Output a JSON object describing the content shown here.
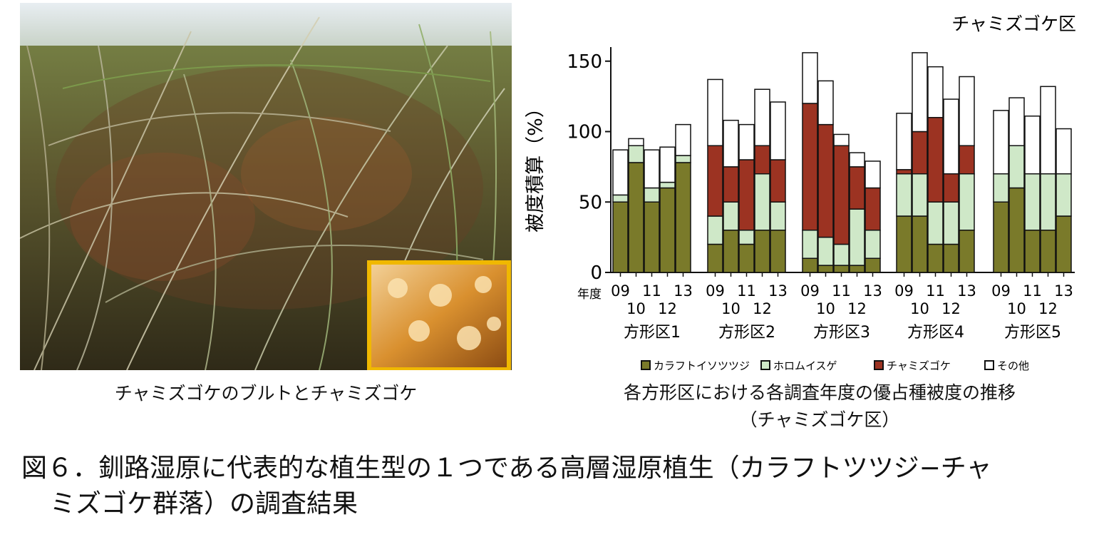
{
  "photo": {
    "caption": "チャミズゴケのブルトとチャミズゴケ"
  },
  "chart_data": {
    "type": "bar",
    "stacked": true,
    "title": "チャミズゴケ区",
    "ylabel": "被度積算（%）",
    "xlabel": "年度",
    "ylim": [
      0,
      160
    ],
    "yticks": [
      0,
      50,
      100,
      150
    ],
    "groups": [
      "方形区1",
      "方形区2",
      "方形区3",
      "方形区4",
      "方形区5"
    ],
    "years": [
      "09",
      "10",
      "11",
      "12",
      "13"
    ],
    "legend_position": "bottom",
    "colors": {
      "カラフトイソツツジ": "#7a7a2a",
      "ホロムイスゲ": "#cfe8c8",
      "チャミズゴケ": "#9c3322",
      "その他": "#ffffff"
    },
    "series": [
      {
        "name": "カラフトイソツツジ",
        "values": [
          [
            50,
            78,
            50,
            60,
            78
          ],
          [
            20,
            30,
            20,
            30,
            30
          ],
          [
            10,
            5,
            5,
            5,
            10
          ],
          [
            40,
            40,
            20,
            20,
            30
          ],
          [
            50,
            60,
            30,
            30,
            40
          ]
        ]
      },
      {
        "name": "ホロムイスゲ",
        "values": [
          [
            5,
            12,
            10,
            4,
            5
          ],
          [
            20,
            20,
            10,
            40,
            20
          ],
          [
            20,
            20,
            15,
            40,
            20
          ],
          [
            30,
            30,
            30,
            30,
            40
          ],
          [
            20,
            30,
            40,
            40,
            30
          ]
        ]
      },
      {
        "name": "チャミズゴケ",
        "values": [
          [
            0,
            0,
            0,
            0,
            0
          ],
          [
            50,
            25,
            50,
            20,
            30
          ],
          [
            90,
            80,
            70,
            30,
            30
          ],
          [
            3,
            30,
            60,
            20,
            20
          ],
          [
            0,
            0,
            0,
            0,
            0
          ]
        ]
      },
      {
        "name": "その他",
        "values": [
          [
            32,
            5,
            27,
            25,
            22
          ],
          [
            47,
            33,
            25,
            40,
            41
          ],
          [
            36,
            31,
            8,
            10,
            19
          ],
          [
            40,
            56,
            36,
            53,
            49
          ],
          [
            45,
            34,
            41,
            62,
            32
          ]
        ]
      }
    ]
  },
  "chart_caption": {
    "line1": "各方形区における各調査年度の優占種被度の推移",
    "line2": "（チャミズゴケ区）"
  },
  "figure_caption": {
    "line1": "図６．釧路湿原に代表的な植生型の１つである高層湿原植生（カラフトツツジ−チャ",
    "line2": "ミズゴケ群落）の調査結果"
  }
}
